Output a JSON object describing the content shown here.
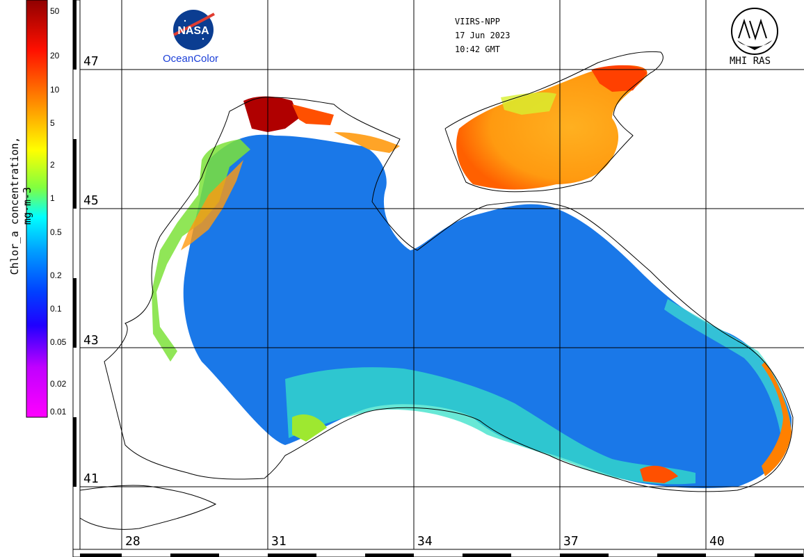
{
  "header": {
    "sensor": "VIIRS-NPP",
    "date": "17 Jun 2023",
    "time": "10:42 GMT"
  },
  "logos": {
    "nasa_badge": "NASA",
    "nasa_caption": "OceanColor",
    "mhi_caption": "MHI RAS"
  },
  "colorbar": {
    "title": "Chlor_a concentration, mg·m-3",
    "ticks": [
      "50",
      "20",
      "10",
      "5",
      "2",
      "1",
      "0.5",
      "0.2",
      "0.1",
      "0.05",
      "0.02",
      "0.01"
    ],
    "scale": "log",
    "colors_top_to_bottom": [
      "#a00000",
      "#ff0000",
      "#ff8000",
      "#ffff00",
      "#80ff00",
      "#00ffff",
      "#0080ff",
      "#0000ff",
      "#8000ff",
      "#ff00ff"
    ]
  },
  "grid": {
    "latitudes": [
      "47",
      "45",
      "43",
      "41"
    ],
    "longitudes": [
      "28",
      "31",
      "34",
      "37",
      "40"
    ]
  },
  "colors": {
    "deep_water": "#1a78e8",
    "land": "#ffffff",
    "coastline": "#000000"
  }
}
